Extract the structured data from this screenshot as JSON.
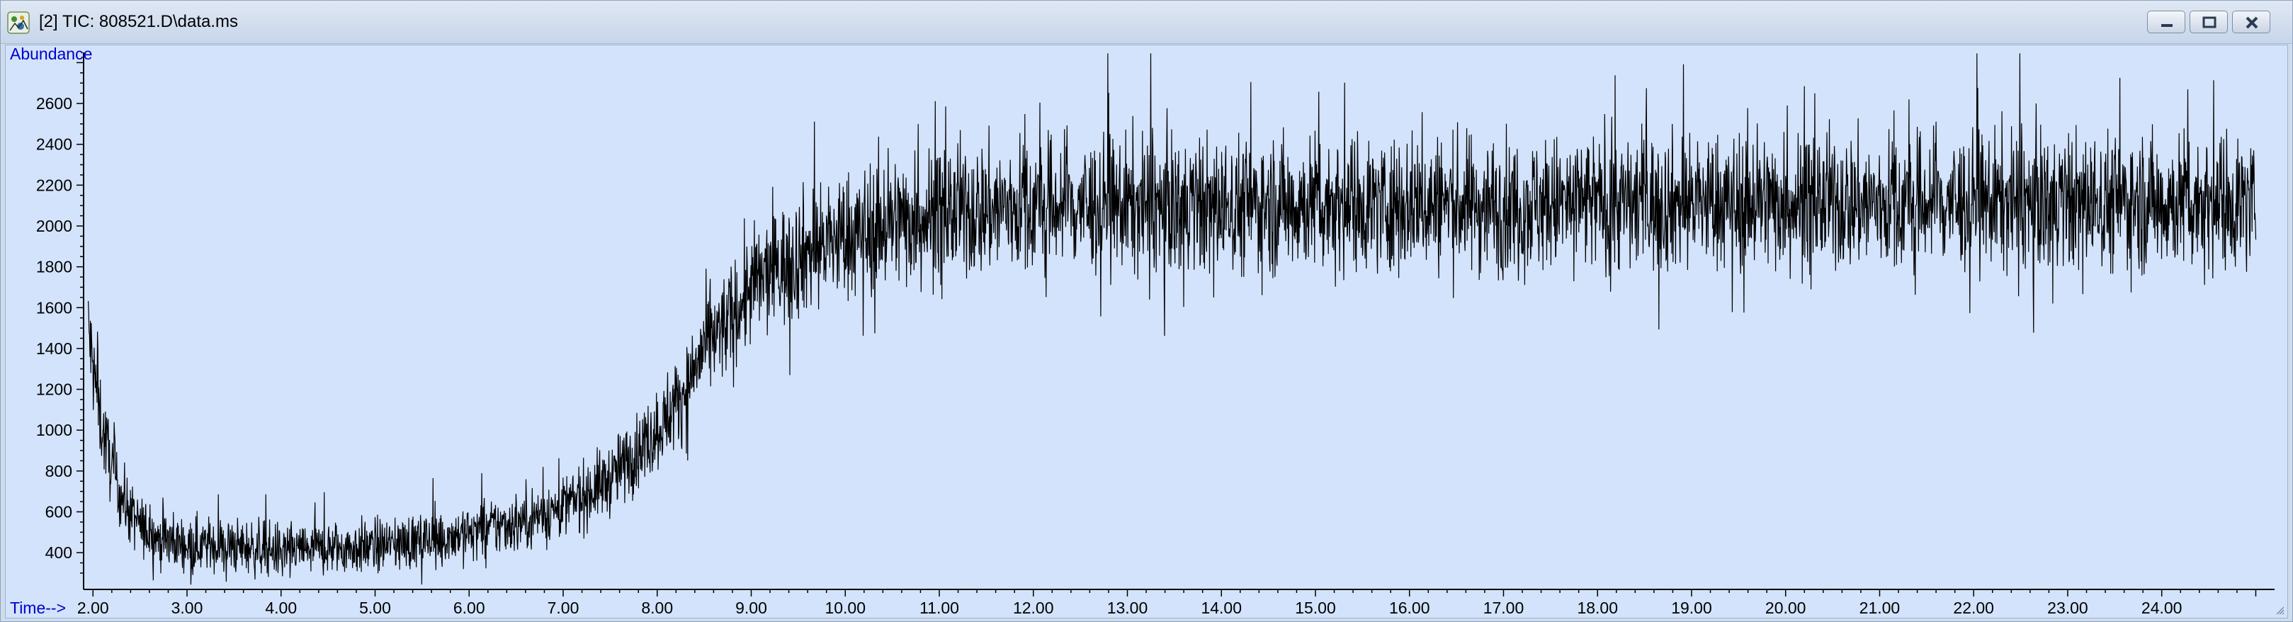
{
  "window": {
    "title": "[2] TIC: 808521.D\\data.ms",
    "app_icon": "chromatogram-app-icon",
    "controls": [
      "minimize-icon",
      "restore-icon",
      "close-icon"
    ]
  },
  "colors": {
    "plot_background": "#d3e3fb",
    "trace": "#000000",
    "axis_label": "#0000cc",
    "tick_text": "#000000"
  },
  "chart_data": {
    "type": "line",
    "title": "",
    "ylabel": "Abundance",
    "xlabel": "Time-->",
    "xlim": [
      1.9,
      25.2
    ],
    "ylim": [
      220,
      2850
    ],
    "grid": false,
    "x_ticks": [
      "2.00",
      "3.00",
      "4.00",
      "5.00",
      "6.00",
      "7.00",
      "8.00",
      "9.00",
      "10.00",
      "11.00",
      "12.00",
      "13.00",
      "14.00",
      "15.00",
      "16.00",
      "17.00",
      "18.00",
      "19.00",
      "20.00",
      "21.00",
      "22.00",
      "23.00",
      "24.00"
    ],
    "y_ticks": [
      "400",
      "600",
      "800",
      "1000",
      "1200",
      "1400",
      "1600",
      "1800",
      "2000",
      "2200",
      "2400",
      "2600"
    ],
    "series": [
      {
        "x": [
          1.95,
          2.0,
          2.1,
          2.2,
          2.3,
          2.4,
          2.5,
          2.7,
          3.0,
          3.5,
          4.0,
          4.5,
          5.0,
          5.5,
          6.0,
          6.5,
          7.0,
          7.5,
          8.0,
          8.3,
          8.5,
          8.8,
          9.0,
          9.3,
          9.6,
          10.0,
          10.5,
          11.0,
          12.0,
          13.0,
          14.0,
          15.0,
          16.0,
          17.0,
          18.0,
          19.0,
          20.0,
          21.0,
          22.0,
          23.0,
          24.0,
          25.0
        ],
        "y": [
          1500,
          1300,
          1000,
          820,
          680,
          590,
          530,
          470,
          440,
          430,
          410,
          420,
          430,
          460,
          500,
          550,
          620,
          760,
          1000,
          1200,
          1400,
          1550,
          1700,
          1800,
          1880,
          1950,
          2020,
          2060,
          2100,
          2100,
          2100,
          2110,
          2110,
          2100,
          2110,
          2120,
          2120,
          2110,
          2120,
          2120,
          2120,
          2120
        ]
      }
    ]
  }
}
